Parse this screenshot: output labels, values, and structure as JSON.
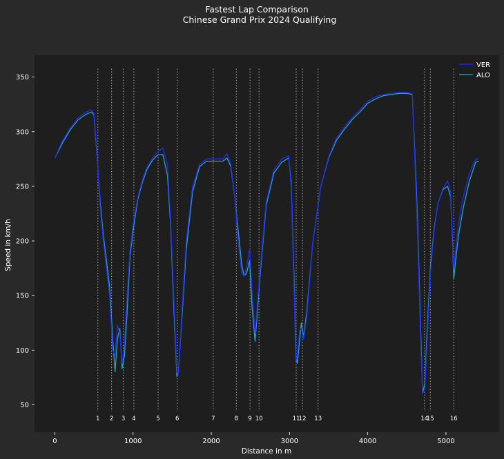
{
  "chart_data": {
    "type": "line",
    "title": "Fastest Lap Comparison",
    "subtitle": "Chinese Grand Prix 2024 Qualifying",
    "xlabel": "Distance in m",
    "ylabel": "Speed in km/h",
    "xlim": [
      -260,
      5680
    ],
    "ylim": [
      25,
      370
    ],
    "xticks": [
      0,
      1000,
      2000,
      3000,
      4000,
      5000
    ],
    "yticks": [
      50,
      100,
      150,
      200,
      250,
      300,
      350
    ],
    "grid": false,
    "legend_position": "top-right",
    "colors": {
      "figure_bg": "#292929",
      "axes_bg": "#1e1e1e",
      "text": "#ffffff",
      "corner_line": "#b0b0b0"
    },
    "corners": [
      {
        "number": "1",
        "x": 550
      },
      {
        "number": "2",
        "x": 725
      },
      {
        "number": "3",
        "x": 875
      },
      {
        "number": "4",
        "x": 1010
      },
      {
        "number": "5",
        "x": 1320
      },
      {
        "number": "6",
        "x": 1565
      },
      {
        "number": "7",
        "x": 2025
      },
      {
        "number": "8",
        "x": 2320
      },
      {
        "number": "9",
        "x": 2495
      },
      {
        "number": "10",
        "x": 2610
      },
      {
        "number": "11",
        "x": 3085
      },
      {
        "number": "12",
        "x": 3165
      },
      {
        "number": "13",
        "x": 3365
      },
      {
        "number": "14",
        "x": 4725
      },
      {
        "number": "15",
        "x": 4800
      },
      {
        "number": "16",
        "x": 5100
      }
    ],
    "series": [
      {
        "name": "VER",
        "color": "#1a2cff",
        "x": [
          0,
          100,
          200,
          300,
          400,
          470,
          500,
          540,
          580,
          620,
          660,
          700,
          740,
          770,
          800,
          830,
          860,
          890,
          920,
          960,
          1000,
          1060,
          1120,
          1180,
          1250,
          1320,
          1380,
          1440,
          1480,
          1520,
          1560,
          1580,
          1620,
          1680,
          1760,
          1850,
          1940,
          2050,
          2150,
          2200,
          2250,
          2300,
          2350,
          2390,
          2420,
          2450,
          2490,
          2520,
          2560,
          2620,
          2700,
          2800,
          2900,
          2990,
          3020,
          3060,
          3080,
          3100,
          3130,
          3150,
          3180,
          3220,
          3300,
          3400,
          3500,
          3600,
          3700,
          3800,
          3900,
          4000,
          4100,
          4200,
          4300,
          4400,
          4500,
          4570,
          4620,
          4640,
          4660,
          4680,
          4700,
          4730,
          4760,
          4800,
          4850,
          4900,
          4960,
          5020,
          5060,
          5080,
          5100,
          5120,
          5160,
          5220,
          5300,
          5380,
          5420
        ],
        "y": [
          276,
          292,
          304,
          313,
          318,
          320,
          317,
          280,
          230,
          200,
          175,
          150,
          100,
          95,
          123,
          115,
          88,
          105,
          145,
          190,
          215,
          240,
          256,
          268,
          276,
          282,
          285,
          270,
          220,
          150,
          80,
          78,
          130,
          200,
          250,
          270,
          275,
          275,
          275,
          280,
          270,
          240,
          195,
          170,
          168,
          175,
          193,
          155,
          115,
          170,
          235,
          265,
          275,
          278,
          250,
          150,
          90,
          95,
          118,
          120,
          110,
          130,
          200,
          250,
          277,
          294,
          304,
          313,
          320,
          328,
          332,
          334,
          335,
          336,
          336,
          335,
          240,
          200,
          150,
          100,
          60,
          65,
          110,
          170,
          210,
          235,
          248,
          255,
          245,
          200,
          175,
          190,
          215,
          240,
          262,
          275,
          275
        ]
      },
      {
        "name": "ALO",
        "color": "#2ea6b0",
        "x": [
          0,
          100,
          200,
          300,
          400,
          470,
          500,
          540,
          580,
          620,
          660,
          700,
          740,
          770,
          800,
          830,
          860,
          890,
          920,
          960,
          1000,
          1060,
          1120,
          1180,
          1250,
          1320,
          1380,
          1440,
          1480,
          1520,
          1560,
          1580,
          1620,
          1680,
          1760,
          1850,
          1940,
          2050,
          2150,
          2200,
          2250,
          2300,
          2350,
          2390,
          2420,
          2450,
          2490,
          2520,
          2560,
          2620,
          2700,
          2800,
          2900,
          2990,
          3020,
          3060,
          3080,
          3100,
          3130,
          3150,
          3180,
          3220,
          3300,
          3400,
          3500,
          3600,
          3700,
          3800,
          3900,
          4000,
          4100,
          4200,
          4300,
          4400,
          4500,
          4570,
          4620,
          4640,
          4660,
          4680,
          4700,
          4730,
          4760,
          4800,
          4850,
          4900,
          4960,
          5020,
          5060,
          5080,
          5100,
          5120,
          5160,
          5220,
          5300,
          5380,
          5420
        ],
        "y": [
          276,
          290,
          302,
          311,
          316,
          318,
          315,
          278,
          235,
          205,
          182,
          158,
          110,
          80,
          110,
          120,
          83,
          95,
          130,
          185,
          210,
          238,
          254,
          266,
          274,
          279,
          279,
          260,
          215,
          140,
          76,
          80,
          125,
          192,
          245,
          268,
          273,
          273,
          273,
          276,
          268,
          240,
          205,
          178,
          168,
          170,
          182,
          140,
          108,
          165,
          232,
          262,
          272,
          276,
          255,
          160,
          95,
          88,
          110,
          125,
          112,
          135,
          200,
          250,
          276,
          292,
          302,
          311,
          318,
          326,
          330,
          333,
          334,
          335,
          335,
          334,
          250,
          210,
          160,
          110,
          60,
          70,
          120,
          175,
          212,
          235,
          247,
          250,
          240,
          205,
          165,
          180,
          205,
          230,
          255,
          272,
          273
        ]
      }
    ]
  }
}
